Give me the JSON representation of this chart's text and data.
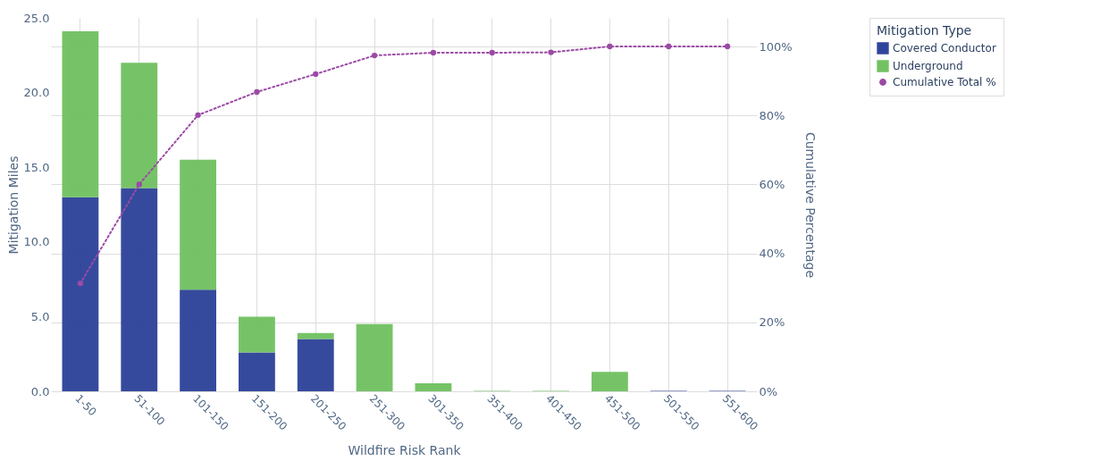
{
  "chart_data": {
    "type": "bar",
    "stacked": true,
    "xlabel": "Wildfire Risk Rank",
    "ylabel": "Mitigation Miles",
    "y2label": "Cumulative Percentage",
    "legend_title": "Mitigation Type",
    "categories": [
      "1-50",
      "51-100",
      "101-150",
      "151-200",
      "201-250",
      "251-300",
      "301-350",
      "351-400",
      "401-450",
      "451-500",
      "501-550",
      "551-600"
    ],
    "series": [
      {
        "name": "Covered Conductor",
        "color": "#30449a",
        "values": [
          13.0,
          13.6,
          6.8,
          2.6,
          3.5,
          0,
          0,
          0,
          0,
          0,
          0.03,
          0.03
        ]
      },
      {
        "name": "Underground",
        "color": "#72c162",
        "values": [
          11.1,
          8.4,
          8.7,
          2.4,
          0.4,
          4.5,
          0.54,
          0.03,
          0.03,
          1.3,
          0,
          0
        ]
      },
      {
        "name": "Cumulative Total %",
        "color": "#9b4aa5",
        "type": "line",
        "axis": "y2",
        "marker": "circle",
        "line_style": "dotted",
        "values": [
          31.3,
          60,
          80.1,
          86.8,
          92,
          97.4,
          98.2,
          98.2,
          98.3,
          100,
          100,
          100
        ]
      }
    ],
    "ylim": [
      0,
      25
    ],
    "yticks": [
      {
        "value": 0,
        "label": "0.0"
      },
      {
        "value": 5,
        "label": "5.0"
      },
      {
        "value": 10,
        "label": "10.0"
      },
      {
        "value": 15,
        "label": "15.0"
      },
      {
        "value": 20,
        "label": "20.0"
      },
      {
        "value": 25,
        "label": "25.0"
      }
    ],
    "y2lim": [
      0,
      108.3
    ],
    "y2ticks": [
      {
        "value": 0,
        "label": "0%"
      },
      {
        "value": 20,
        "label": "20%"
      },
      {
        "value": 40,
        "label": "40%"
      },
      {
        "value": 60,
        "label": "60%"
      },
      {
        "value": 80,
        "label": "80%"
      },
      {
        "value": 100,
        "label": "100%"
      }
    ],
    "grid": true,
    "legend": "top right"
  }
}
